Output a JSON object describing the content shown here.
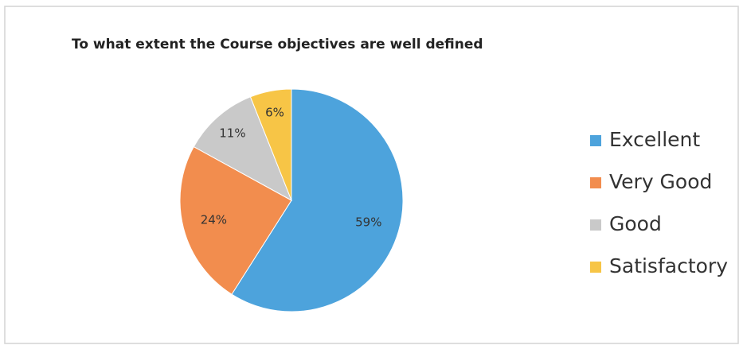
{
  "chart_data": {
    "type": "pie",
    "title": "To what extent the Course objectives are well defined",
    "categories": [
      "Excellent",
      "Very Good",
      "Good",
      "Satisfactory"
    ],
    "values": [
      59,
      24,
      11,
      6
    ],
    "value_labels": [
      "59%",
      "24%",
      "11%",
      "6%"
    ],
    "colors": [
      "#4da3dc",
      "#f28d4e",
      "#c9c9c9",
      "#f7c546"
    ],
    "legend": "right"
  }
}
